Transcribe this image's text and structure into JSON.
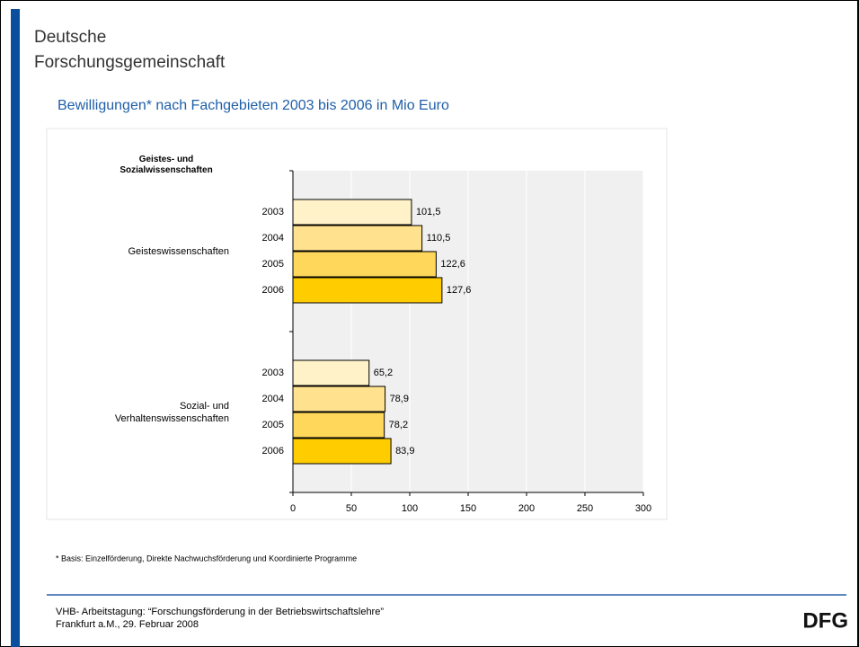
{
  "header": {
    "line1": "Deutsche",
    "line2": "Forschungsgemeinschaft"
  },
  "chart_data": {
    "type": "bar",
    "orientation": "horizontal",
    "title": "Bewilligungen* nach Fachgebieten 2003 bis 2006 in Mio Euro",
    "category_axis_title": "Geistes- und Sozialwissenschaften",
    "categories": [
      "Geisteswissenschaften",
      "Sozial- und Verhaltenswissenschaften"
    ],
    "series": [
      {
        "name": "2003",
        "color": "#fff2c8",
        "values": [
          101.5,
          65.2
        ],
        "value_labels": [
          "101,5",
          "65,2"
        ]
      },
      {
        "name": "2004",
        "color": "#ffe18e",
        "values": [
          110.5,
          78.9
        ],
        "value_labels": [
          "110,5",
          "78,9"
        ]
      },
      {
        "name": "2005",
        "color": "#ffd75a",
        "values": [
          122.6,
          78.2
        ],
        "value_labels": [
          "122,6",
          "78,2"
        ]
      },
      {
        "name": "2006",
        "color": "#ffcc00",
        "values": [
          127.6,
          83.9
        ],
        "value_labels": [
          "127,6",
          "83,9"
        ]
      }
    ],
    "xlim": [
      0,
      300
    ],
    "xticks": [
      0,
      50,
      100,
      150,
      200,
      250,
      300
    ],
    "grid": true,
    "footnote": "* Basis: Einzelförderung, Direkte Nachwuchsförderung und Koordinierte Programme"
  },
  "footer": {
    "line1": "VHB- Arbeitstagung: “Forschungsförderung in der Betriebswirtschaftslehre”",
    "line2": "Frankfurt a.M., 29. Februar 2008",
    "logo": "DFG"
  }
}
